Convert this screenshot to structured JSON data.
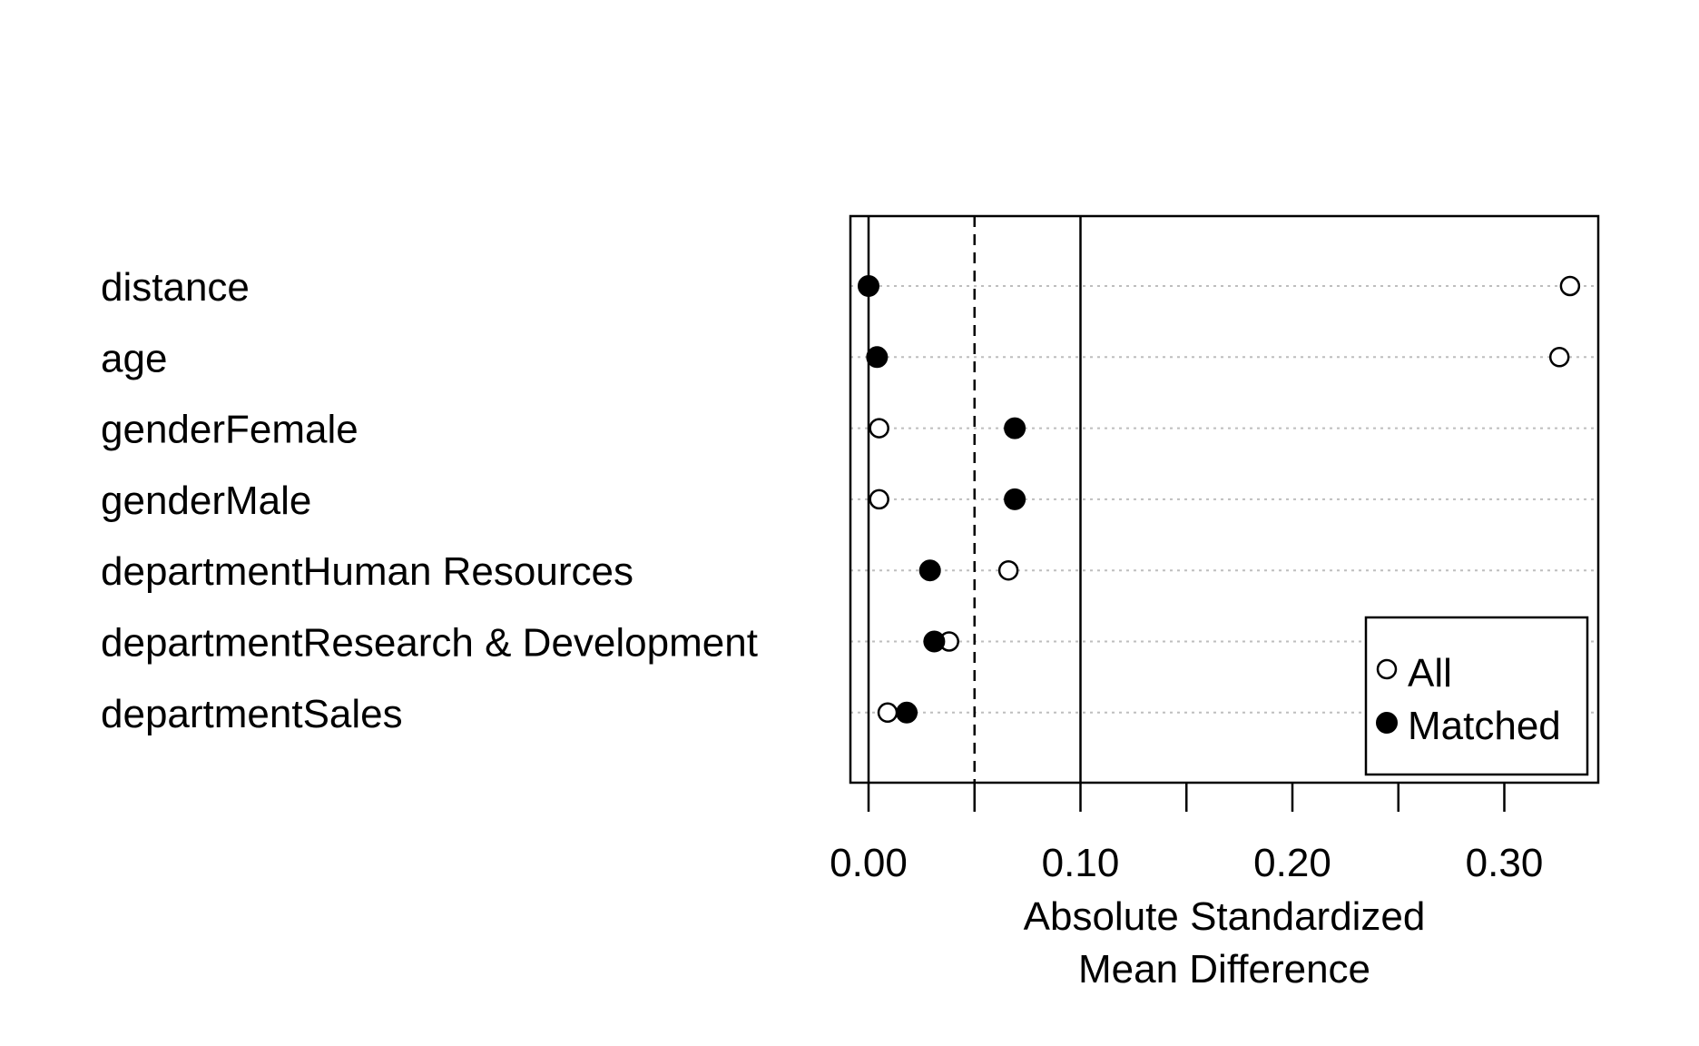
{
  "chart_data": {
    "type": "scatter",
    "title": "",
    "xlabel": [
      "Absolute Standardized",
      "Mean Difference"
    ],
    "ylabel": "",
    "xlim": [
      -0.008,
      0.345
    ],
    "x_ticks": [
      0.0,
      0.05,
      0.1,
      0.15,
      0.2,
      0.25,
      0.3
    ],
    "x_tick_labels": [
      "0.00",
      "0.10",
      "0.20",
      "0.30"
    ],
    "x_tick_label_values": [
      0.0,
      0.1,
      0.2,
      0.3
    ],
    "reference_lines": [
      {
        "x": 0.0,
        "style": "solid"
      },
      {
        "x": 0.05,
        "style": "dashed"
      },
      {
        "x": 0.1,
        "style": "solid"
      }
    ],
    "grid": "horizontal-dotted",
    "legend_position": "bottom-right",
    "categories": [
      "distance",
      "age",
      "genderFemale",
      "genderMale",
      "departmentHuman Resources",
      "departmentResearch & Development",
      "departmentSales"
    ],
    "series": [
      {
        "name": "All",
        "marker": "open-circle",
        "values": [
          0.331,
          0.326,
          0.005,
          0.005,
          0.066,
          0.038,
          0.009
        ]
      },
      {
        "name": "Matched",
        "marker": "filled-circle",
        "values": [
          0.0,
          0.004,
          0.069,
          0.069,
          0.029,
          0.031,
          0.018
        ]
      }
    ]
  },
  "colors": {
    "ink": "#000000",
    "grid": "#bebebe",
    "background": "#ffffff"
  }
}
